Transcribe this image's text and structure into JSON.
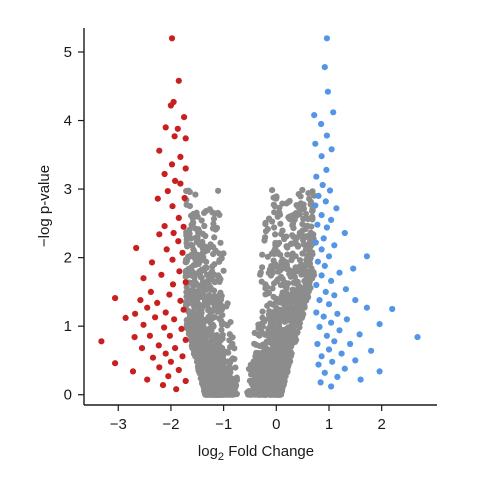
{
  "chart_data": {
    "type": "scatter",
    "title": "",
    "xlabel_main": "log",
    "xlabel_sub": "2",
    "xlabel_tail": " Fold Change",
    "ylabel": "−log p-value",
    "xlim": [
      -3.65,
      3.05
    ],
    "ylim": [
      -0.15,
      5.35
    ],
    "xticks": [
      -3,
      -2,
      -1,
      0,
      1,
      2
    ],
    "xtick_labels": [
      "−3",
      "−2",
      "−1",
      "0",
      "1",
      "2"
    ],
    "yticks": [
      0,
      1,
      2,
      3,
      4,
      5
    ],
    "ytick_labels": [
      "0",
      "1",
      "2",
      "3",
      "4",
      "5"
    ],
    "grid": false,
    "legend": "none",
    "colors": {
      "down": "#c8201e",
      "neutral": "#8c8c8c",
      "up": "#5496e6"
    },
    "down_points": [
      [
        -1.98,
        5.2
      ],
      [
        -1.85,
        4.58
      ],
      [
        -1.95,
        4.27
      ],
      [
        -2.0,
        4.22
      ],
      [
        -1.75,
        4.05
      ],
      [
        -2.1,
        3.9
      ],
      [
        -1.87,
        3.88
      ],
      [
        -1.93,
        3.77
      ],
      [
        -1.72,
        3.74
      ],
      [
        -2.22,
        3.56
      ],
      [
        -1.82,
        3.47
      ],
      [
        -1.98,
        3.36
      ],
      [
        -1.72,
        3.3
      ],
      [
        -2.12,
        3.22
      ],
      [
        -1.92,
        3.12
      ],
      [
        -1.82,
        3.08
      ],
      [
        -2.06,
        2.97
      ],
      [
        -2.25,
        2.86
      ],
      [
        -1.74,
        2.87
      ],
      [
        -1.97,
        2.75
      ],
      [
        -1.85,
        2.58
      ],
      [
        -2.12,
        2.46
      ],
      [
        -1.76,
        2.45
      ],
      [
        -1.95,
        2.36
      ],
      [
        -2.22,
        2.34
      ],
      [
        -1.86,
        2.24
      ],
      [
        -2.66,
        2.14
      ],
      [
        -2.08,
        2.12
      ],
      [
        -1.97,
        1.97
      ],
      [
        -1.78,
        2.07
      ],
      [
        -2.36,
        1.93
      ],
      [
        -1.84,
        1.8
      ],
      [
        -2.18,
        1.75
      ],
      [
        -2.52,
        1.7
      ],
      [
        -1.96,
        1.61
      ],
      [
        -1.72,
        1.64
      ],
      [
        -2.38,
        1.5
      ],
      [
        -2.03,
        1.46
      ],
      [
        -2.26,
        1.34
      ],
      [
        -1.82,
        1.37
      ],
      [
        -2.58,
        1.38
      ],
      [
        -3.06,
        1.41
      ],
      [
        -2.45,
        1.27
      ],
      [
        -2.1,
        1.2
      ],
      [
        -1.76,
        1.24
      ],
      [
        -2.68,
        1.18
      ],
      [
        -2.3,
        1.13
      ],
      [
        -1.94,
        1.1
      ],
      [
        -2.86,
        1.12
      ],
      [
        -2.52,
        1.02
      ],
      [
        -2.13,
        0.98
      ],
      [
        -1.8,
        0.96
      ],
      [
        -2.4,
        0.86
      ],
      [
        -2.02,
        0.86
      ],
      [
        -2.69,
        0.84
      ],
      [
        -3.32,
        0.78
      ],
      [
        -1.72,
        0.8
      ],
      [
        -2.23,
        0.72
      ],
      [
        -2.55,
        0.68
      ],
      [
        -1.92,
        0.68
      ],
      [
        -2.1,
        0.6
      ],
      [
        -2.34,
        0.54
      ],
      [
        -1.78,
        0.56
      ],
      [
        -3.06,
        0.46
      ],
      [
        -2.0,
        0.48
      ],
      [
        -2.22,
        0.4
      ],
      [
        -2.72,
        0.34
      ],
      [
        -1.85,
        0.36
      ],
      [
        -2.05,
        0.27
      ],
      [
        -2.45,
        0.22
      ],
      [
        -1.72,
        0.2
      ],
      [
        -2.15,
        0.14
      ],
      [
        -1.9,
        0.08
      ]
    ],
    "up_points": [
      [
        0.96,
        5.2
      ],
      [
        0.92,
        4.78
      ],
      [
        0.98,
        4.42
      ],
      [
        1.08,
        4.12
      ],
      [
        0.72,
        4.08
      ],
      [
        0.85,
        3.95
      ],
      [
        0.96,
        3.78
      ],
      [
        0.74,
        3.66
      ],
      [
        1.05,
        3.58
      ],
      [
        0.86,
        3.48
      ],
      [
        0.95,
        3.28
      ],
      [
        0.76,
        3.18
      ],
      [
        0.88,
        3.06
      ],
      [
        1.02,
        2.98
      ],
      [
        0.8,
        2.9
      ],
      [
        0.94,
        2.82
      ],
      [
        0.74,
        2.76
      ],
      [
        1.14,
        2.72
      ],
      [
        0.86,
        2.62
      ],
      [
        1.04,
        2.55
      ],
      [
        0.78,
        2.48
      ],
      [
        0.96,
        2.44
      ],
      [
        1.3,
        2.36
      ],
      [
        0.9,
        2.28
      ],
      [
        0.75,
        2.22
      ],
      [
        1.1,
        2.18
      ],
      [
        0.86,
        2.12
      ],
      [
        1.72,
        2.02
      ],
      [
        1.0,
        2.02
      ],
      [
        0.79,
        1.94
      ],
      [
        1.46,
        1.84
      ],
      [
        0.92,
        1.88
      ],
      [
        1.2,
        1.78
      ],
      [
        0.86,
        1.74
      ],
      [
        1.04,
        1.66
      ],
      [
        0.76,
        1.6
      ],
      [
        1.32,
        1.54
      ],
      [
        0.94,
        1.5
      ],
      [
        1.1,
        1.45
      ],
      [
        1.5,
        1.38
      ],
      [
        0.82,
        1.38
      ],
      [
        1.0,
        1.32
      ],
      [
        1.72,
        1.27
      ],
      [
        2.2,
        1.25
      ],
      [
        0.76,
        1.2
      ],
      [
        1.16,
        1.18
      ],
      [
        0.9,
        1.14
      ],
      [
        1.34,
        1.1
      ],
      [
        1.04,
        1.05
      ],
      [
        1.96,
        1.03
      ],
      [
        0.82,
        0.99
      ],
      [
        1.2,
        0.94
      ],
      [
        1.58,
        0.88
      ],
      [
        0.96,
        0.86
      ],
      [
        2.68,
        0.84
      ],
      [
        1.1,
        0.78
      ],
      [
        1.4,
        0.74
      ],
      [
        0.78,
        0.74
      ],
      [
        1.0,
        0.66
      ],
      [
        1.8,
        0.64
      ],
      [
        1.24,
        0.6
      ],
      [
        0.86,
        0.56
      ],
      [
        1.5,
        0.5
      ],
      [
        1.06,
        0.48
      ],
      [
        0.8,
        0.44
      ],
      [
        1.96,
        0.34
      ],
      [
        1.3,
        0.38
      ],
      [
        0.92,
        0.32
      ],
      [
        1.16,
        0.26
      ],
      [
        1.6,
        0.22
      ],
      [
        0.84,
        0.18
      ],
      [
        1.04,
        0.12
      ]
    ],
    "neutral_description": "dense V-shaped cloud of non-significant points, |log2FC| < ~0.75 near 0 rising to |log2FC| ~1.7 at -log p ~3"
  }
}
